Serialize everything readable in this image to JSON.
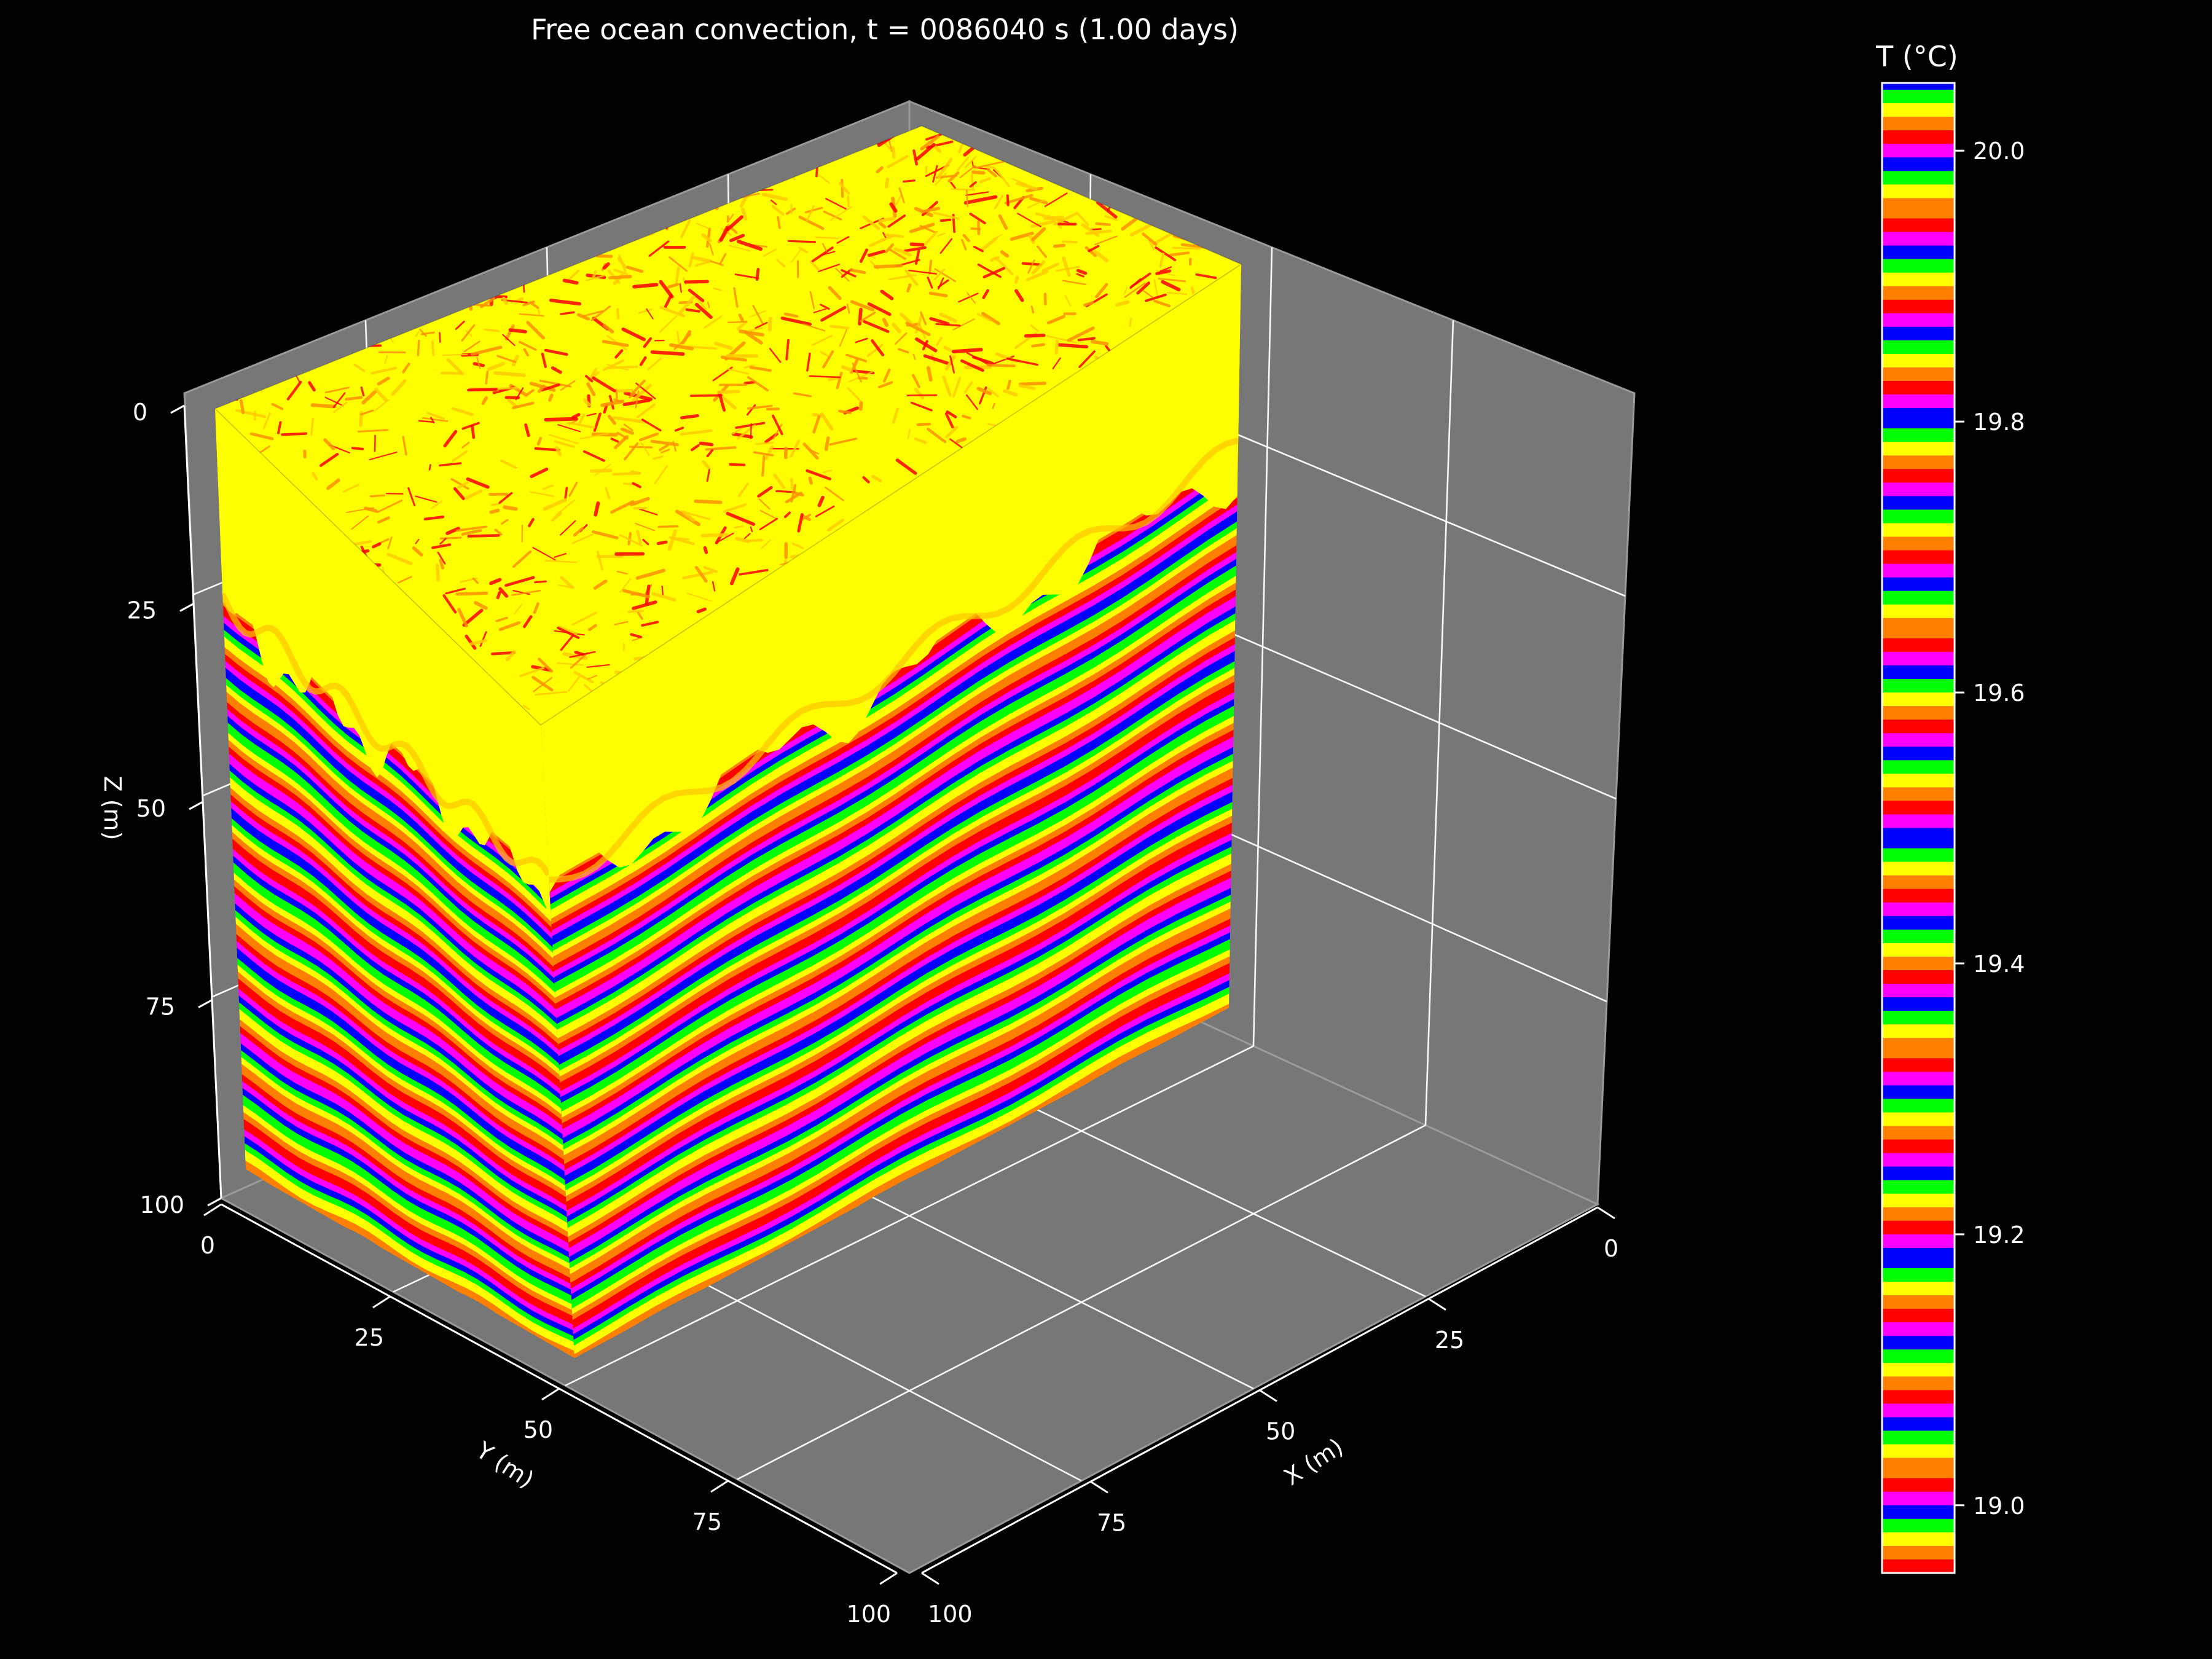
{
  "chart_data": {
    "type": "3d-volume-slice",
    "title": "Free ocean convection, t = 0086040 s (1.00 days)",
    "x_axis": {
      "label": "X (m)",
      "ticks": [
        0,
        25,
        50,
        75,
        100
      ],
      "range": [
        0,
        100
      ]
    },
    "y_axis": {
      "label": "Y (m)",
      "ticks": [
        0,
        25,
        50,
        75,
        100
      ],
      "range": [
        0,
        100
      ]
    },
    "z_axis": {
      "label": "Z (m)",
      "ticks": [
        0,
        25,
        50,
        75,
        100
      ],
      "range": [
        0,
        100
      ],
      "inverted": true
    },
    "colorbar": {
      "label": "T (°C)",
      "colormap": "prism",
      "range": [
        18.95,
        20.05
      ],
      "ticks": [
        "19.0",
        "19.2",
        "19.4",
        "19.6",
        "19.8",
        "20.0"
      ]
    },
    "mixed_layer_depth": 27,
    "surface_temperature_approx": 20.0,
    "prism_colors": [
      "#ff0000",
      "#ff8000",
      "#ffff00",
      "#00ff00",
      "#0000ff",
      "#ff00ff"
    ],
    "top_face_colors": [
      "#ffff00",
      "#ffcc00",
      "#ff9000",
      "#ff0000"
    ]
  },
  "background": "#000000",
  "pane_color": "#777777"
}
